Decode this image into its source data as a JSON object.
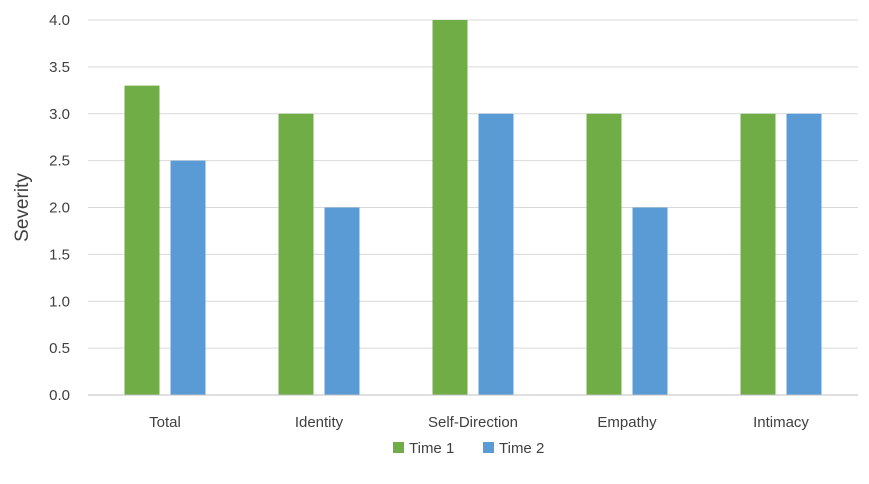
{
  "chart_data": {
    "type": "bar",
    "title": "",
    "xlabel": "",
    "ylabel": "Severity",
    "ylim": [
      0,
      4.0
    ],
    "yticks": [
      "0.0",
      "0.5",
      "1.0",
      "1.5",
      "2.0",
      "2.5",
      "3.0",
      "3.5",
      "4.0"
    ],
    "categories": [
      "Total",
      "Identity",
      "Self-Direction",
      "Empathy",
      "Intimacy"
    ],
    "series": [
      {
        "name": "Time 1",
        "color": "#70ad47",
        "values": [
          3.3,
          3.0,
          4.0,
          3.0,
          3.0
        ]
      },
      {
        "name": "Time 2",
        "color": "#5b9bd5",
        "values": [
          2.5,
          2.0,
          3.0,
          2.0,
          3.0
        ]
      }
    ],
    "grid": true,
    "legend_position": "bottom"
  }
}
